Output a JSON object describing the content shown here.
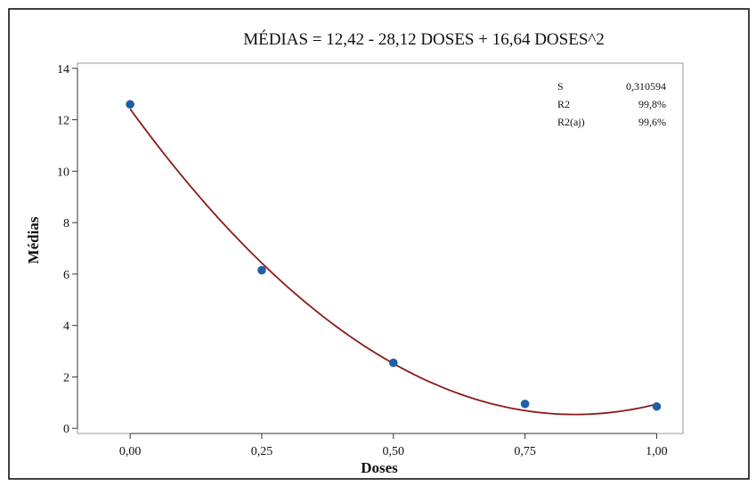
{
  "chart_data": {
    "type": "scatter",
    "title": "MÉDIAS = 12,42 - 28,12 DOSES + 16,64 DOSES^2",
    "xlabel": "Doses",
    "ylabel": "Médias",
    "xlim": [
      -0.1,
      1.05
    ],
    "ylim": [
      -0.2,
      14.2
    ],
    "x_ticks": [
      0,
      0.25,
      0.5,
      0.75,
      1.0
    ],
    "x_tick_labels": [
      "0,00",
      "0,25",
      "0,50",
      "0,75",
      "1,00"
    ],
    "y_ticks": [
      0,
      2,
      4,
      6,
      8,
      10,
      12,
      14
    ],
    "y_tick_labels": [
      "0",
      "2",
      "4",
      "6",
      "8",
      "10",
      "12",
      "14"
    ],
    "grid": false,
    "series": [
      {
        "type": "scatter",
        "x": [
          0,
          0.25,
          0.5,
          0.75,
          1.0
        ],
        "y": [
          12.6,
          6.15,
          2.55,
          0.95,
          0.85
        ],
        "color": "#1f5fa6"
      },
      {
        "type": "fit_line",
        "model": "quadratic",
        "coefficients": {
          "intercept": 12.42,
          "linear": -28.12,
          "quadratic": 16.64
        },
        "x_range": [
          0,
          1.0
        ],
        "color": "#8b1a1a"
      }
    ],
    "stats": {
      "rows": [
        {
          "label": "S",
          "value": "0,310594"
        },
        {
          "label": "R2",
          "value": "99,8%"
        },
        {
          "label": "R2(aj)",
          "value": "99,6%"
        }
      ],
      "placement": "top-right"
    }
  }
}
